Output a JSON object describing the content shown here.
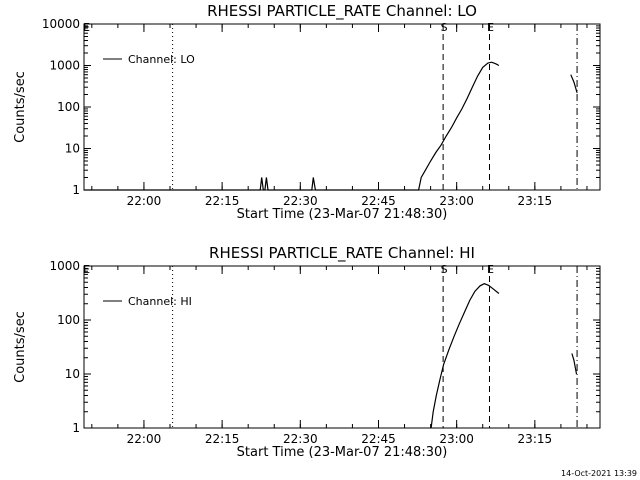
{
  "timestamp": "14-Oct-2021 13:39",
  "chart_data": [
    {
      "type": "line",
      "title": "RHESSI PARTICLE_RATE Channel: LO",
      "xlabel": "Start Time (23-Mar-07 21:48:30)",
      "ylabel": "Counts/sec",
      "x_unit": "minutes since 21:48:30",
      "xlim": [
        0,
        99
      ],
      "ylim": [
        1,
        10000
      ],
      "yscale": "log",
      "x_ticks": [
        {
          "t": 11.5,
          "label": "22:00"
        },
        {
          "t": 26.5,
          "label": "22:15"
        },
        {
          "t": 41.5,
          "label": "22:30"
        },
        {
          "t": 56.5,
          "label": "22:45"
        },
        {
          "t": 71.5,
          "label": "23:00"
        },
        {
          "t": 86.5,
          "label": "23:15"
        }
      ],
      "y_ticks": [
        {
          "v": 1,
          "label": "1"
        },
        {
          "v": 10,
          "label": "10"
        },
        {
          "v": 100,
          "label": "100"
        },
        {
          "v": 1000,
          "label": "1000"
        },
        {
          "v": 10000,
          "label": "10000"
        }
      ],
      "legend": {
        "position": "top-left",
        "entries": [
          "Channel: LO"
        ]
      },
      "markers": [
        {
          "t": 0.3,
          "label": "E",
          "style": "none"
        },
        {
          "t": 17.0,
          "label": "",
          "style": "dotted"
        },
        {
          "t": 68.9,
          "label": "S",
          "style": "dashed"
        },
        {
          "t": 77.8,
          "label": "E",
          "style": "dashed"
        },
        {
          "t": 94.6,
          "label": "",
          "style": "dashdot"
        }
      ],
      "series": [
        {
          "name": "Channel: LO",
          "segments": [
            [
              [
                0,
                1
              ],
              [
                33.8,
                1
              ],
              [
                34.1,
                2
              ],
              [
                34.4,
                1
              ],
              [
                34.7,
                1
              ],
              [
                35.0,
                2
              ],
              [
                35.3,
                1
              ],
              [
                43.7,
                1
              ],
              [
                44.0,
                2
              ],
              [
                44.4,
                1
              ],
              [
                64.2,
                1
              ],
              [
                64.7,
                2
              ],
              [
                65.5,
                3
              ],
              [
                66.5,
                5
              ],
              [
                67.5,
                8
              ],
              [
                68.5,
                12
              ],
              [
                69.5,
                20
              ],
              [
                70.5,
                32
              ],
              [
                71.5,
                55
              ],
              [
                72.5,
                90
              ],
              [
                73.5,
                160
              ],
              [
                74.5,
                300
              ],
              [
                75.5,
                550
              ],
              [
                76.5,
                900
              ],
              [
                77.5,
                1150
              ],
              [
                78.2,
                1200
              ],
              [
                79.0,
                1100
              ],
              [
                79.6,
                1000
              ]
            ],
            [
              [
                93.4,
                600
              ],
              [
                94.0,
                400
              ],
              [
                94.6,
                220
              ]
            ]
          ]
        }
      ]
    },
    {
      "type": "line",
      "title": "RHESSI PARTICLE_RATE Channel: HI",
      "xlabel": "Start Time (23-Mar-07 21:48:30)",
      "ylabel": "Counts/sec",
      "x_unit": "minutes since 21:48:30",
      "xlim": [
        0,
        99
      ],
      "ylim": [
        1,
        1000
      ],
      "yscale": "log",
      "x_ticks": [
        {
          "t": 11.5,
          "label": "22:00"
        },
        {
          "t": 26.5,
          "label": "22:15"
        },
        {
          "t": 41.5,
          "label": "22:30"
        },
        {
          "t": 56.5,
          "label": "22:45"
        },
        {
          "t": 71.5,
          "label": "23:00"
        },
        {
          "t": 86.5,
          "label": "23:15"
        }
      ],
      "y_ticks": [
        {
          "v": 1,
          "label": "1"
        },
        {
          "v": 10,
          "label": "10"
        },
        {
          "v": 100,
          "label": "100"
        },
        {
          "v": 1000,
          "label": "1000"
        }
      ],
      "legend": {
        "position": "top-left",
        "entries": [
          "Channel: HI"
        ]
      },
      "markers": [
        {
          "t": 0.3,
          "label": "E",
          "style": "none"
        },
        {
          "t": 17.0,
          "label": "",
          "style": "dotted"
        },
        {
          "t": 68.9,
          "label": "S",
          "style": "dashed"
        },
        {
          "t": 77.8,
          "label": "E",
          "style": "dashed"
        },
        {
          "t": 94.6,
          "label": "",
          "style": "dashdot"
        }
      ],
      "series": [
        {
          "name": "Channel: HI",
          "segments": [
            [
              [
                66.6,
                1
              ],
              [
                67.0,
                2
              ],
              [
                67.6,
                4
              ],
              [
                68.3,
                8
              ],
              [
                69.0,
                15
              ],
              [
                70.0,
                28
              ],
              [
                71.0,
                50
              ],
              [
                72.0,
                85
              ],
              [
                73.0,
                140
              ],
              [
                74.0,
                230
              ],
              [
                75.0,
                340
              ],
              [
                76.0,
                430
              ],
              [
                76.8,
                470
              ],
              [
                77.6,
                440
              ],
              [
                78.6,
                370
              ],
              [
                79.6,
                310
              ]
            ],
            [
              [
                93.6,
                24
              ],
              [
                94.0,
                18
              ],
              [
                94.5,
                10
              ]
            ]
          ]
        }
      ]
    }
  ]
}
